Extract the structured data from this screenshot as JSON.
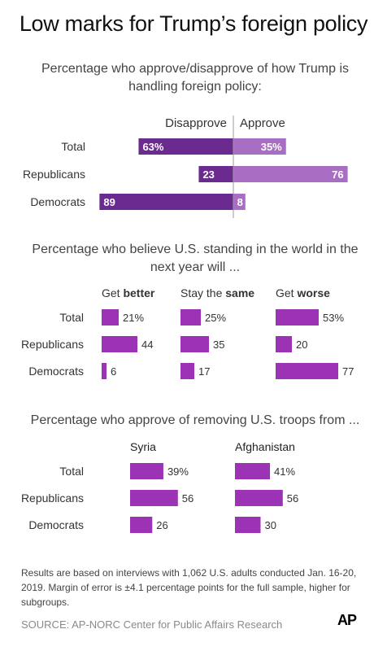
{
  "title": "Low marks for Trump’s foreign policy",
  "colors": {
    "dark_purple": "#6b2a8f",
    "light_purple": "#a86ec4",
    "magenta": "#9b33b4",
    "axis": "#999999"
  },
  "chart_data": [
    {
      "type": "bar",
      "title": "Percentage who approve/disapprove of how Trump is handling foreign policy:",
      "categories": [
        "Total",
        "Republicans",
        "Democrats"
      ],
      "series": [
        {
          "name": "Disapprove",
          "values": [
            63,
            23,
            89
          ],
          "labels": [
            "63%",
            "23",
            "89"
          ]
        },
        {
          "name": "Approve",
          "values": [
            35,
            76,
            8
          ],
          "labels": [
            "35%",
            "76",
            "8"
          ]
        }
      ]
    },
    {
      "type": "bar",
      "title": "Percentage who believe U.S. standing in the world in the next year will ...",
      "categories": [
        "Total",
        "Republicans",
        "Democrats"
      ],
      "series": [
        {
          "name": "Get better",
          "name_parts": [
            "Get ",
            "better"
          ],
          "values": [
            21,
            44,
            6
          ],
          "labels": [
            "21%",
            "44",
            "6"
          ]
        },
        {
          "name": "Stay the same",
          "name_parts": [
            "Stay the ",
            "same"
          ],
          "values": [
            25,
            35,
            17
          ],
          "labels": [
            "25%",
            "35",
            "17"
          ]
        },
        {
          "name": "Get worse",
          "name_parts": [
            "Get ",
            "worse"
          ],
          "values": [
            53,
            20,
            77
          ],
          "labels": [
            "53%",
            "20",
            "77"
          ]
        }
      ]
    },
    {
      "type": "bar",
      "title": "Percentage who approve of removing U.S. troops from ...",
      "categories": [
        "Total",
        "Republicans",
        "Democrats"
      ],
      "series": [
        {
          "name": "Syria",
          "values": [
            39,
            56,
            26
          ],
          "labels": [
            "39%",
            "56",
            "26"
          ]
        },
        {
          "name": "Afghanistan",
          "values": [
            41,
            56,
            30
          ],
          "labels": [
            "41%",
            "56",
            "30"
          ]
        }
      ]
    }
  ],
  "footnote": "Results are based on interviews with 1,062 U.S. adults conducted Jan. 16-20, 2019. Margin of error is ±4.1 percentage points for the full sample, higher for subgroups.",
  "source": "SOURCE: AP-NORC Center for Public Affairs Research",
  "logo_text": "AP"
}
